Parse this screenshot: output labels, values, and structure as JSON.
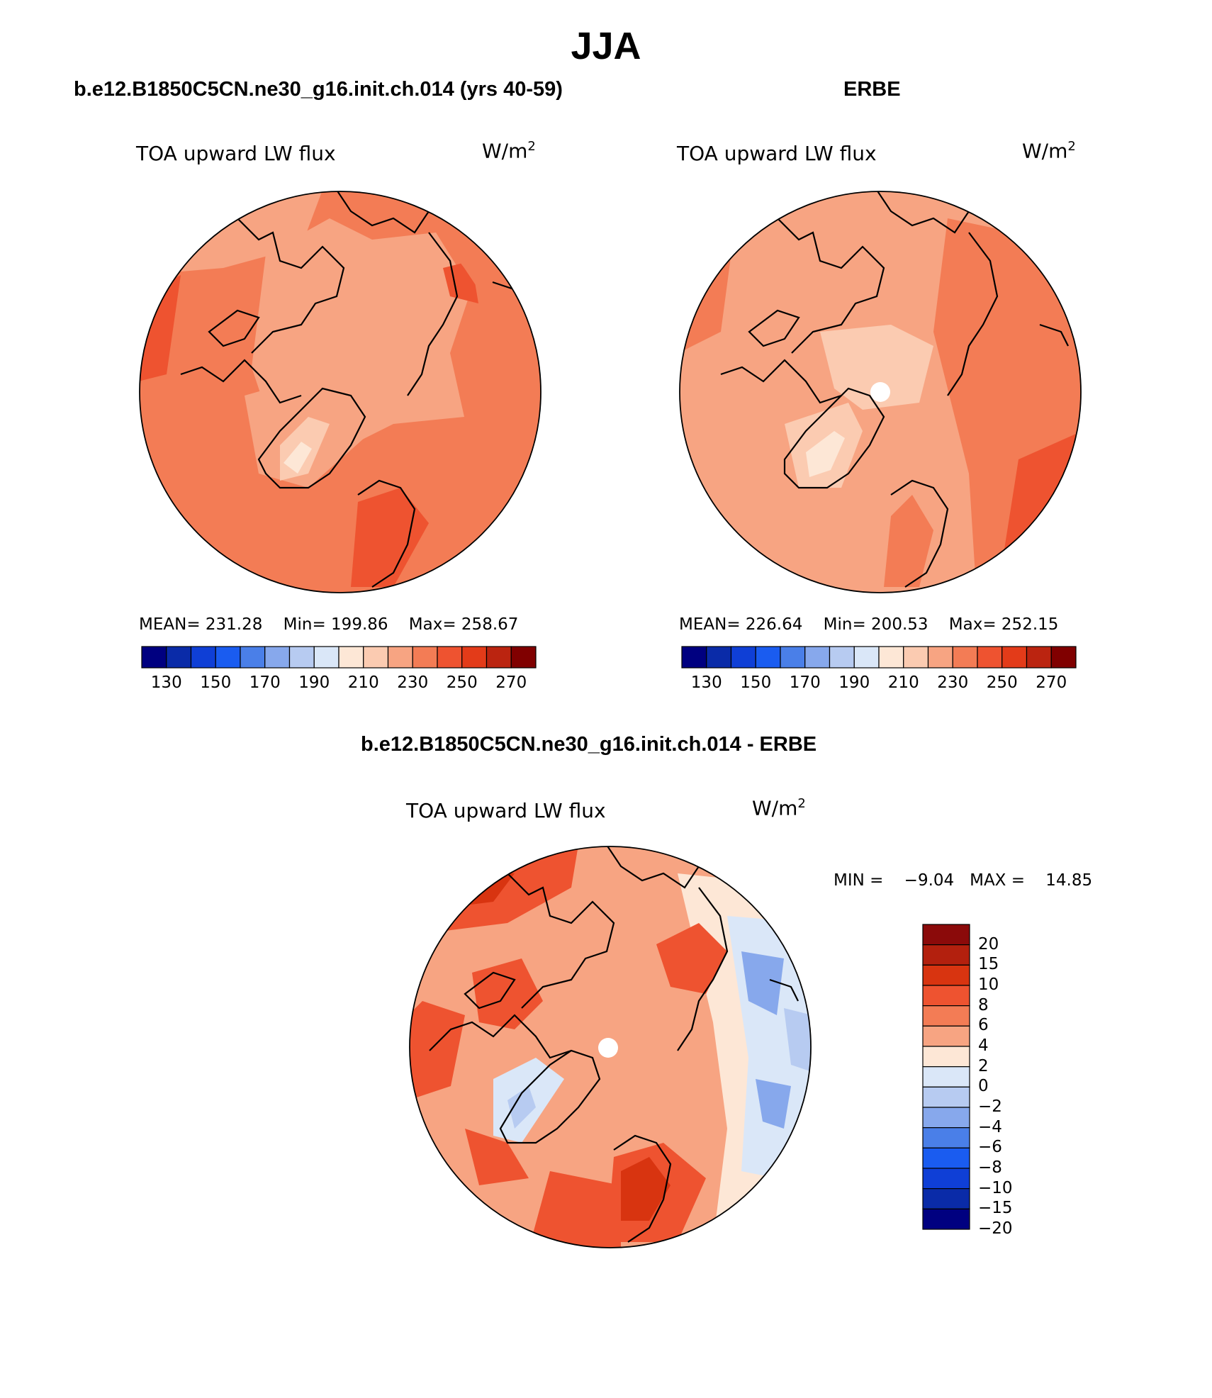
{
  "figure": {
    "title": "JJA",
    "panels": [
      {
        "id": "model",
        "title": "b.e12.B1850C5CN.ne30_g16.init.ch.014 (yrs 40-59)",
        "variable": "TOA upward LW flux",
        "units_base": "W/m",
        "units_exp": "2",
        "stats": {
          "mean_label": "MEAN=",
          "mean": "231.28",
          "min_label": "Min=",
          "min": "199.86",
          "max_label": "Max=",
          "max": "258.67"
        }
      },
      {
        "id": "obs",
        "title": "ERBE",
        "variable": "TOA upward LW flux",
        "units_base": "W/m",
        "units_exp": "2",
        "stats": {
          "mean_label": "MEAN=",
          "mean": "226.64",
          "min_label": "Min=",
          "min": "200.53",
          "max_label": "Max=",
          "max": "252.15"
        }
      },
      {
        "id": "diff",
        "title": "b.e12.B1850C5CN.ne30_g16.init.ch.014 - ERBE",
        "variable": "TOA upward LW flux",
        "units_base": "W/m",
        "units_exp": "2",
        "stats": {
          "min_label": "MIN =",
          "min": "−9.04",
          "max_label": "MAX =",
          "max": "14.85"
        }
      }
    ],
    "abs_colorbar": {
      "colors": [
        "#000080",
        "#0a2ba8",
        "#0f3fd6",
        "#1a5cf0",
        "#4a7fe8",
        "#87a8ec",
        "#b7cbf1",
        "#dae7f8",
        "#fde7d6",
        "#fbcbb1",
        "#f7a482",
        "#f37c55",
        "#ee5330",
        "#e33b19",
        "#bb2410",
        "#800000"
      ],
      "ticks": [
        "130",
        "150",
        "170",
        "190",
        "210",
        "230",
        "250",
        "270"
      ]
    },
    "diff_colorbar": {
      "colors": [
        "#8b0a0a",
        "#b3200e",
        "#d83410",
        "#ee5330",
        "#f37c55",
        "#f7a482",
        "#fde7d6",
        "#dae7f8",
        "#b7cbf1",
        "#87a8ec",
        "#4a7fe8",
        "#1a5cf0",
        "#0f3fd6",
        "#0a2ba8",
        "#000080"
      ],
      "ticks": [
        "20",
        "15",
        "10",
        "8",
        "6",
        "4",
        "2",
        "0",
        "−2",
        "−4",
        "−6",
        "−8",
        "−10",
        "−15",
        "−20"
      ]
    }
  }
}
